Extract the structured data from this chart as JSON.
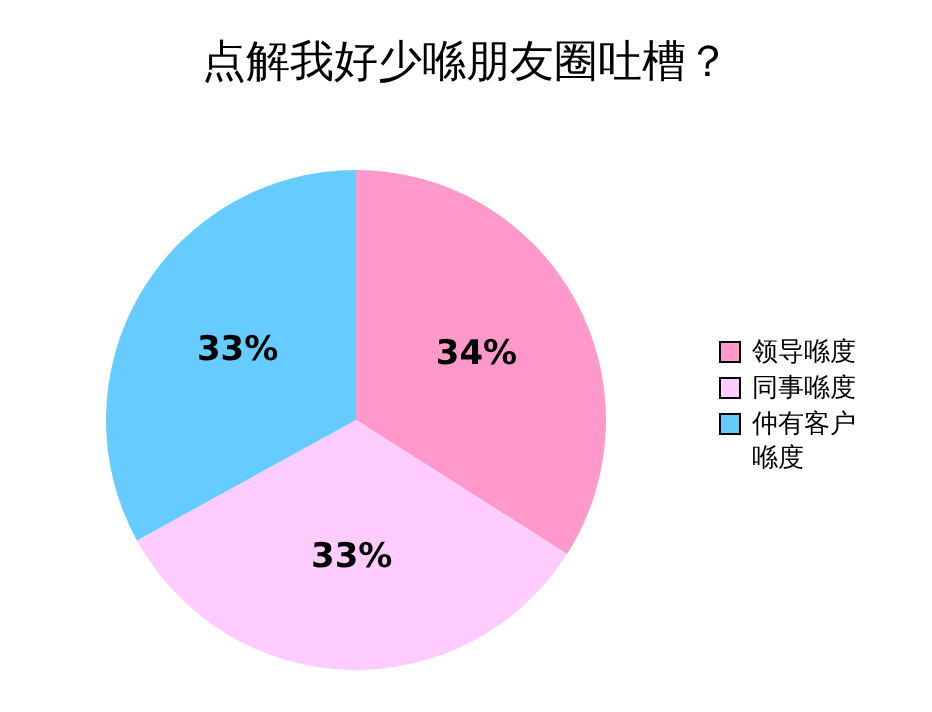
{
  "chart_data": {
    "type": "pie",
    "title": "点解我好少喺朋友圈吐槽？",
    "categories": [
      "领导喺度",
      "同事喺度",
      "仲有客户喺度"
    ],
    "values": [
      34,
      33,
      33
    ],
    "colors": [
      "#ff99cc",
      "#ffccff",
      "#66ccff"
    ],
    "value_labels": [
      "34%",
      "33%",
      "33%"
    ],
    "legend": "right"
  }
}
